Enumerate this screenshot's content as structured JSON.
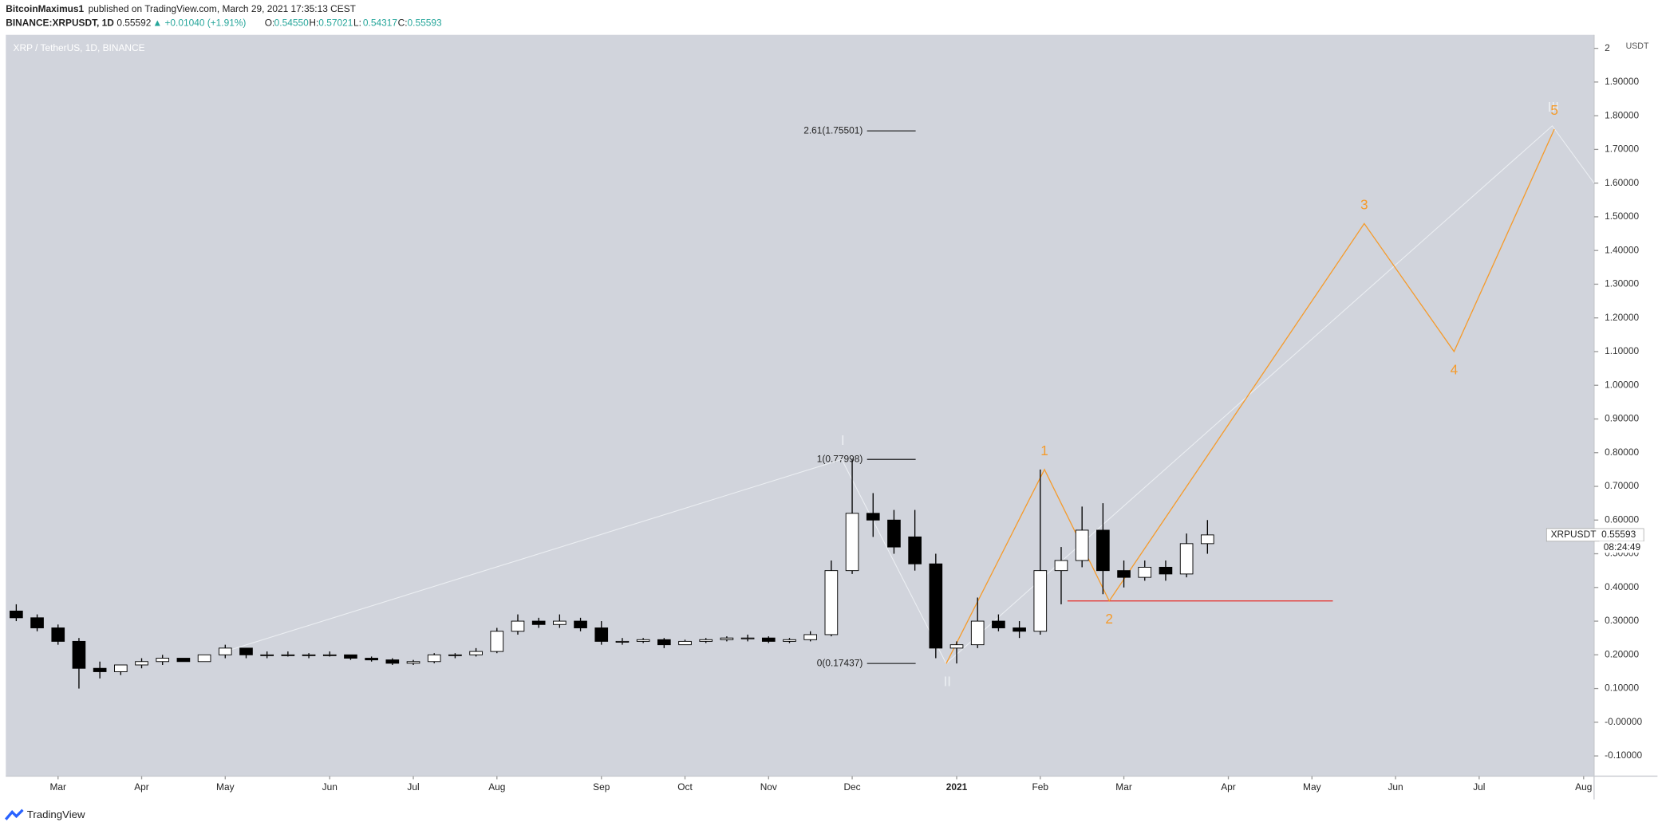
{
  "header": {
    "author": "BitcoinMaximus1",
    "published": "published on TradingView.com, March 29, 2021 17:35:13 CEST",
    "symbol": "BINANCE:XRPUSDT, 1D",
    "quote": "0.55592",
    "change": "▲ +0.01040 (+1.91%)",
    "ohlc": [
      "O:",
      "0.54550",
      "H:",
      "0.57021",
      "L:",
      "0.54317",
      "C:",
      "0.55593"
    ]
  },
  "footer": "TradingView",
  "chart_data": {
    "type": "candlestick",
    "title": "XRP / TetherUS, 1D, BINANCE",
    "y_unit": "USDT",
    "categories": [
      null,
      null,
      "Mar",
      null,
      null,
      null,
      "Apr",
      null,
      null,
      null,
      "May",
      null,
      null,
      null,
      null,
      "Jun",
      null,
      null,
      null,
      "Jul",
      null,
      null,
      null,
      "Aug",
      null,
      null,
      null,
      null,
      "Sep",
      null,
      null,
      null,
      "Oct",
      null,
      null,
      null,
      "Nov",
      null,
      null,
      null,
      "Dec",
      null,
      null,
      null,
      null,
      "2021",
      null,
      null,
      null,
      "Feb",
      null,
      null,
      null,
      "Mar",
      null,
      null,
      null,
      null,
      "Apr",
      null,
      null,
      null,
      "May",
      null,
      null,
      null,
      "Jun",
      null,
      null,
      null,
      "Jul",
      null,
      null,
      null,
      null,
      "Aug"
    ],
    "open": [
      0.33,
      0.31,
      0.28,
      0.24,
      0.16,
      0.15,
      0.17,
      0.18,
      0.19,
      0.18,
      0.2,
      0.22,
      0.2,
      0.2,
      0.2,
      0.2,
      0.2,
      0.19,
      0.185,
      0.175,
      0.18,
      0.2,
      0.2,
      0.21,
      0.27,
      0.3,
      0.29,
      0.3,
      0.28,
      0.24,
      0.24,
      0.245,
      0.23,
      0.24,
      0.245,
      0.25,
      0.25,
      0.24,
      0.245,
      0.26,
      0.45,
      0.62,
      0.6,
      0.55,
      0.47,
      0.22,
      0.23,
      0.3,
      0.28,
      0.27,
      0.45,
      0.48,
      0.57,
      0.45,
      0.43,
      0.46,
      0.44,
      0.53,
      null,
      null,
      null,
      null,
      null,
      null,
      null,
      null,
      null,
      null,
      null,
      null,
      null,
      null,
      null,
      null,
      null,
      null
    ],
    "high": [
      0.35,
      0.32,
      0.29,
      0.25,
      0.18,
      0.17,
      0.19,
      0.2,
      0.19,
      0.2,
      0.23,
      0.22,
      0.21,
      0.21,
      0.205,
      0.21,
      0.2,
      0.195,
      0.19,
      0.185,
      0.205,
      0.205,
      0.22,
      0.28,
      0.32,
      0.31,
      0.32,
      0.31,
      0.3,
      0.25,
      0.25,
      0.25,
      0.245,
      0.25,
      0.255,
      0.26,
      0.255,
      0.25,
      0.27,
      0.48,
      0.77998,
      0.68,
      0.63,
      0.63,
      0.5,
      0.24,
      0.37,
      0.32,
      0.3,
      0.75,
      0.52,
      0.64,
      0.65,
      0.48,
      0.48,
      0.48,
      0.56,
      0.6,
      null,
      null,
      null,
      null,
      null,
      null,
      null,
      null,
      null,
      null,
      null,
      null,
      null,
      null,
      null,
      null,
      null,
      null
    ],
    "low": [
      0.3,
      0.27,
      0.23,
      0.1,
      0.13,
      0.14,
      0.16,
      0.17,
      0.18,
      0.18,
      0.19,
      0.19,
      0.19,
      0.195,
      0.19,
      0.195,
      0.185,
      0.18,
      0.17,
      0.17,
      0.175,
      0.19,
      0.195,
      0.205,
      0.26,
      0.28,
      0.28,
      0.27,
      0.23,
      0.23,
      0.235,
      0.22,
      0.23,
      0.235,
      0.24,
      0.24,
      0.235,
      0.235,
      0.24,
      0.255,
      0.44,
      0.55,
      0.5,
      0.45,
      0.19,
      0.17437,
      0.22,
      0.27,
      0.25,
      0.26,
      0.35,
      0.46,
      0.38,
      0.4,
      0.42,
      0.42,
      0.43,
      0.5,
      null,
      null,
      null,
      null,
      null,
      null,
      null,
      null,
      null,
      null,
      null,
      null,
      null,
      null,
      null,
      null,
      null,
      null
    ],
    "close": [
      0.31,
      0.28,
      0.24,
      0.16,
      0.15,
      0.17,
      0.18,
      0.19,
      0.18,
      0.2,
      0.22,
      0.2,
      0.2,
      0.2,
      0.2,
      0.2,
      0.19,
      0.185,
      0.175,
      0.18,
      0.2,
      0.2,
      0.21,
      0.27,
      0.3,
      0.29,
      0.3,
      0.28,
      0.24,
      0.24,
      0.245,
      0.23,
      0.24,
      0.245,
      0.25,
      0.25,
      0.24,
      0.245,
      0.26,
      0.45,
      0.62,
      0.6,
      0.52,
      0.47,
      0.22,
      0.23,
      0.3,
      0.28,
      0.27,
      0.45,
      0.48,
      0.57,
      0.45,
      0.43,
      0.46,
      0.44,
      0.53,
      0.55593,
      null,
      null,
      null,
      null,
      null,
      null,
      null,
      null,
      null,
      null,
      null,
      null,
      null,
      null,
      null,
      null,
      null,
      null
    ],
    "up_color": "#ffffff",
    "down_color": "#000000",
    "ylim": [
      -0.16,
      2.04
    ],
    "yticks": [
      2,
      {
        "value": 1.9,
        "label": "1.90000"
      },
      {
        "value": 1.8,
        "label": "1.80000"
      },
      {
        "value": 1.7,
        "label": "1.70000"
      },
      {
        "value": 1.6,
        "label": "1.60000"
      },
      {
        "value": 1.5,
        "label": "1.50000"
      },
      {
        "value": 1.4,
        "label": "1.40000"
      },
      {
        "value": 1.3,
        "label": "1.30000"
      },
      {
        "value": 1.2,
        "label": "1.20000"
      },
      {
        "value": 1.1,
        "label": "1.10000"
      },
      {
        "value": 1.0,
        "label": "1.00000"
      },
      {
        "value": 0.9,
        "label": "0.90000"
      },
      {
        "value": 0.8,
        "label": "0.80000"
      },
      {
        "value": 0.7,
        "label": "0.70000"
      },
      {
        "value": 0.6,
        "label": "0.60000"
      },
      {
        "value": 0.5,
        "label": "0.50000"
      },
      {
        "value": 0.4,
        "label": "0.40000"
      },
      {
        "value": 0.3,
        "label": "0.30000"
      },
      {
        "value": 0.2,
        "label": "0.20000"
      },
      {
        "value": 0.1,
        "label": "0.10000"
      },
      {
        "value": 0,
        "label": "-0.00000"
      },
      {
        "value": -0.1,
        "label": "-0.10000"
      }
    ],
    "last_price": {
      "name": "XRPUSDT",
      "label": "0.55593",
      "countdown": "08:24:49"
    },
    "fib_levels": [
      {
        "value": 1.75501,
        "label": "2.61(1.75501)"
      },
      {
        "value": 0.77998,
        "label": "1(0.77998)"
      },
      {
        "value": 0.17437,
        "label": "0(0.17437)"
      }
    ],
    "support": {
      "value": 0.36,
      "color": "#e53935"
    },
    "waves": [
      {
        "color": "#eceff3",
        "x": [
          10,
          39.5,
          44.5,
          73.5,
          75.5
        ],
        "values": [
          0.21,
          0.78,
          0.174,
          1.77,
          1.6
        ],
        "labels": [
          null,
          "I",
          "II",
          "III",
          null
        ]
      },
      {
        "color": "#f59b2c",
        "x": [
          44.5,
          49.2,
          52.3,
          64.5,
          68.8,
          73.6
        ],
        "values": [
          0.174,
          0.75,
          0.36,
          1.48,
          1.1,
          1.76
        ],
        "labels": [
          null,
          "1",
          "2",
          "3",
          "4",
          "5"
        ]
      }
    ]
  }
}
